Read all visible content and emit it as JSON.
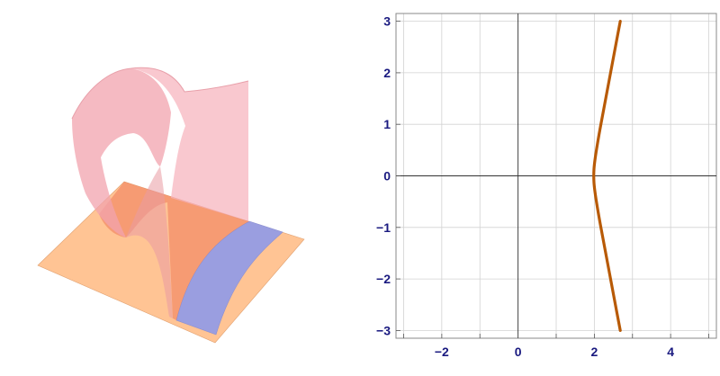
{
  "surface_panel": {
    "icon": "surface-3d-icon",
    "colors": {
      "surface": "#f6b3bd",
      "plane": "#ffc494",
      "band": "#9a9ee0"
    }
  },
  "chart_data": {
    "type": "line",
    "x": [
      2.68,
      2.5,
      2.3,
      2.12,
      2.0,
      1.98,
      2.0,
      2.12,
      2.3,
      2.5,
      2.68
    ],
    "y": [
      3.0,
      2.3,
      1.5,
      0.8,
      0.25,
      0.0,
      -0.25,
      -0.8,
      -1.5,
      -2.3,
      -3.0
    ],
    "xlim": [
      -3.2,
      5.2
    ],
    "ylim": [
      -3.15,
      3.15
    ],
    "x_ticks": [
      "-2",
      "0",
      "2",
      "4"
    ],
    "y_ticks": [
      "3",
      "2",
      "1",
      "0",
      "-1",
      "-2",
      "-3"
    ],
    "grid": true,
    "axes_through_origin": true,
    "line_color": "#b85a06"
  }
}
